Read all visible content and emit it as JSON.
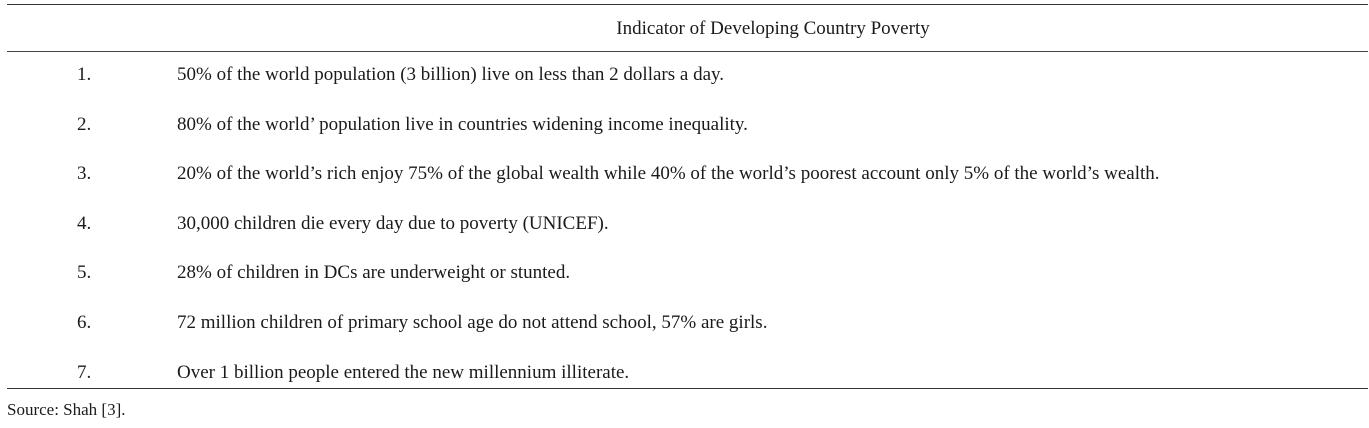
{
  "table": {
    "header": "Indicator of Developing Country Poverty",
    "rows": [
      {
        "num": "1.",
        "text": "50% of the world population (3 billion) live on less than 2 dollars a day."
      },
      {
        "num": "2.",
        "text": "80% of the world’ population live in countries widening income inequality."
      },
      {
        "num": "3.",
        "text": "20% of the world’s rich enjoy 75% of the global wealth while 40% of the world’s poorest account only 5% of the world’s wealth."
      },
      {
        "num": "4.",
        "text": "30,000 children die every day due to poverty (UNICEF)."
      },
      {
        "num": "5.",
        "text": "28% of children in DCs are underweight or stunted."
      },
      {
        "num": "6.",
        "text": "72 million children of primary school age do not attend school, 57% are girls."
      },
      {
        "num": "7.",
        "text": "Over 1 billion people entered the new millennium illiterate."
      }
    ]
  },
  "source": "Source: Shah [3]."
}
